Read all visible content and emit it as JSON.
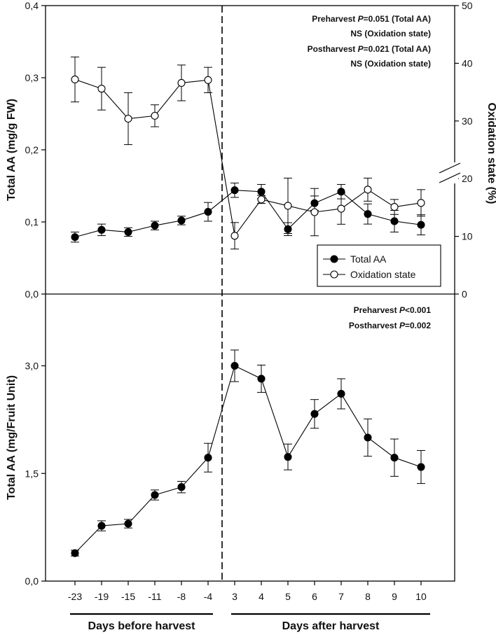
{
  "chart_data": [
    {
      "type": "line",
      "panel": "top",
      "categories": [
        "-23",
        "-19",
        "-15",
        "-11",
        "-8",
        "-4",
        "3",
        "4",
        "5",
        "6",
        "7",
        "8",
        "9",
        "10"
      ],
      "ylabel": "Total AA (mg/g FW)",
      "y2label": "Oxidation state (%)",
      "ylim": [
        0,
        0.4
      ],
      "yticks": [
        "0,0",
        "0,1",
        "0,2",
        "0,3",
        "0,4"
      ],
      "y2lim": [
        0,
        50
      ],
      "y2ticks": [
        "0",
        "10",
        "20",
        "30",
        "40",
        "50"
      ],
      "series": [
        {
          "name": "Total AA",
          "axis": "left",
          "marker": "filled",
          "values": [
            0.079,
            0.089,
            0.086,
            0.095,
            0.102,
            0.114,
            0.144,
            0.142,
            0.09,
            0.126,
            0.142,
            0.111,
            0.101,
            0.096
          ],
          "errors": [
            0.007,
            0.008,
            0.006,
            0.006,
            0.006,
            0.013,
            0.01,
            0.01,
            0.009,
            0.01,
            0.01,
            0.014,
            0.015,
            0.014
          ]
        },
        {
          "name": "Oxidation state",
          "axis": "right",
          "marker": "open",
          "values": [
            37.2,
            35.6,
            30.4,
            30.9,
            36.6,
            37.1,
            10.1,
            16.4,
            15.3,
            14.2,
            14.8,
            18.1,
            15.1,
            15.8
          ],
          "errors": [
            3.9,
            3.7,
            4.5,
            1.9,
            3.1,
            2.2,
            2.3,
            0.7,
            4.8,
            4.1,
            2.7,
            2.0,
            1.3,
            2.3
          ]
        }
      ],
      "legend": [
        "Total AA",
        "Oxidation state"
      ],
      "annotations": [
        {
          "label": "Preharvest ",
          "p": "P",
          "rest": "=0.051 (Total AA)"
        },
        {
          "label": "NS (Oxidation state)",
          "p": "",
          "rest": ""
        },
        {
          "label": "Postharvest ",
          "p": "P",
          "rest": "=0.021 (Total AA)"
        },
        {
          "label": "NS (Oxidation state)",
          "p": "",
          "rest": ""
        }
      ]
    },
    {
      "type": "line",
      "panel": "bottom",
      "categories": [
        "-23",
        "-19",
        "-15",
        "-11",
        "-8",
        "-4",
        "3",
        "4",
        "5",
        "6",
        "7",
        "8",
        "9",
        "10"
      ],
      "ylabel": "Total AA (mg/Fruit Unit)",
      "ylim": [
        0,
        4.0
      ],
      "yticks": [
        "0,0",
        "1,5",
        "3,0"
      ],
      "series": [
        {
          "name": "Total AA",
          "marker": "filled",
          "values": [
            0.39,
            0.77,
            0.8,
            1.2,
            1.31,
            1.72,
            3.0,
            2.82,
            1.73,
            2.33,
            2.61,
            2.0,
            1.72,
            1.59
          ],
          "errors": [
            0.04,
            0.07,
            0.06,
            0.07,
            0.08,
            0.2,
            0.22,
            0.19,
            0.18,
            0.2,
            0.21,
            0.26,
            0.26,
            0.23
          ]
        }
      ],
      "annotations": [
        {
          "label": "Preharvest ",
          "p": "P",
          "rest": "<0.001"
        },
        {
          "label": "Postharvest ",
          "p": "P",
          "rest": "=0.002"
        }
      ]
    }
  ],
  "xgroups": {
    "before": "Days before harvest",
    "after": "Days after harvest"
  }
}
